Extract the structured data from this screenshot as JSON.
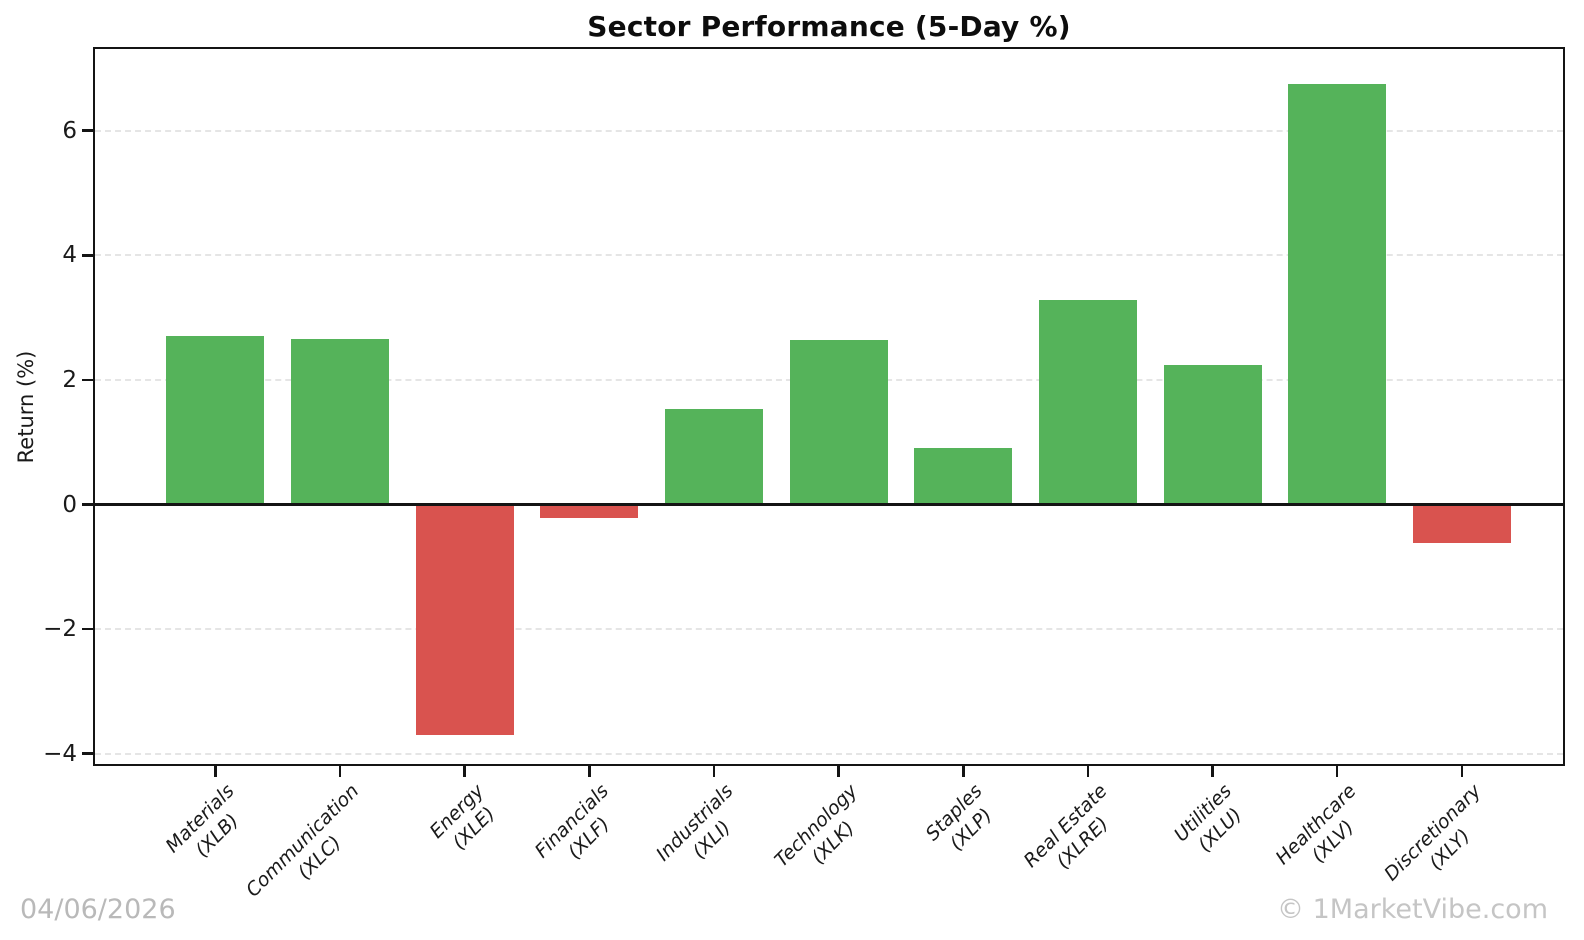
{
  "chart_data": {
    "type": "bar",
    "title": "Sector Performance (5-Day %)",
    "ylabel": "Return (%)",
    "xlabel": "",
    "categories": [
      "Materials",
      "Communication",
      "Energy",
      "Financials",
      "Industrials",
      "Technology",
      "Staples",
      "Real Estate",
      "Utilities",
      "Healthcare",
      "Discretionary"
    ],
    "tickers": [
      "(XLB)",
      "(XLC)",
      "(XLE)",
      "(XLF)",
      "(XLI)",
      "(XLK)",
      "(XLP)",
      "(XLRE)",
      "(XLU)",
      "(XLV)",
      "(XLY)"
    ],
    "values": [
      2.71,
      2.65,
      -3.7,
      -0.22,
      1.54,
      2.64,
      0.91,
      3.28,
      2.24,
      6.75,
      -0.62
    ],
    "yticks": [
      6,
      4,
      2,
      0,
      -2,
      -4
    ],
    "ylim": [
      -4.2,
      7.35
    ],
    "grid": "horizontal-dashed",
    "legend": "none",
    "positive_color": "#55b35a",
    "negative_color": "#d9534f"
  },
  "footer": {
    "date": "04/06/2026",
    "watermark": "© 1MarketVibe.com"
  }
}
